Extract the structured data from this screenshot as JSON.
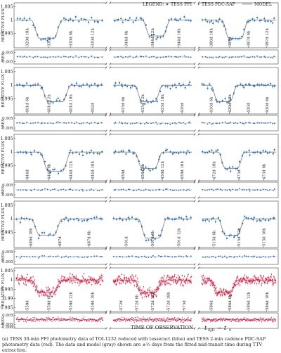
{
  "legend": {
    "title": "LEGEND:",
    "items": [
      {
        "label": "TESS FFI",
        "color": "#2b6cb0",
        "marker": "point"
      },
      {
        "label": "TESS PDC-SAP",
        "color": "#d0143a",
        "marker": "point"
      },
      {
        "label": "MODEL",
        "color": "#888888",
        "marker": "line"
      }
    ]
  },
  "axis_labels": {
    "flux": "RELATIVE FLUX",
    "residual": "RES",
    "x": "TIME OF OBSERVATION",
    "x_math": "t",
    "x_math_sub": "BJD",
    "x_math_rest": " − t",
    "x_math_sub2": "0"
  },
  "caption": {
    "text": "(a) TESS 30-min FFI photometry data of TOI-1232 reduced with tesseract (blue) and TESS 2-min cadence PDC-SAP photometry data (red). The data and model (gray) shown are ±½ days from the fitted mid-transit time during TTV extraction."
  },
  "colors": {
    "ffi": "#2b6cb0",
    "pdc": "#d0143a",
    "model": "#8a8a8a",
    "frame": "#444444"
  },
  "chart_data": [
    {
      "type": "scatter",
      "panel": 1,
      "source": "TESS FFI",
      "flux_ticks": [
        1.005,
        1,
        0.995
      ],
      "res_ticks": [
        0.005,
        -0.005
      ],
      "segments": [
        {
          "transit_depth": 0.007,
          "ticks": [
            "329d 18h",
            "330d",
            "330d 6h",
            "330d 12h"
          ]
        },
        {
          "transit_depth": 0.006,
          "ticks": [
            "344d 6h",
            "344d 12h",
            "344d 18h"
          ]
        },
        {
          "transit_depth": 0.007,
          "ticks": [
            "386d 18h",
            "387d",
            "387d 6h",
            "387d 12h"
          ]
        }
      ]
    },
    {
      "type": "scatter",
      "panel": 2,
      "source": "TESS FFI",
      "flux_ticks": [
        1.005,
        1,
        0.995
      ],
      "res_ticks": [
        0.005,
        -0.005
      ],
      "segments": [
        {
          "transit_depth": 0.006,
          "ticks": [
            "401d 6h",
            "401d 12h",
            "401d 18h",
            "402d"
          ]
        },
        {
          "transit_depth": 0.006,
          "ticks": [
            "415d 6h",
            "415d 12h",
            "415d 18h",
            "416d"
          ]
        },
        {
          "transit_depth": 0.006,
          "ticks": [
            "416d 6h",
            "429d 18h",
            "430d",
            "430d 6h"
          ]
        }
      ]
    },
    {
      "type": "scatter",
      "panel": 3,
      "source": "TESS FFI",
      "flux_ticks": [
        1.005,
        1,
        0.995
      ],
      "res_ticks": [
        0.005,
        -0.005
      ],
      "segments": [
        {
          "transit_depth": 0.007,
          "ticks": [
            "444d",
            "444d 6h",
            "444d 12h",
            "444d 18h"
          ]
        },
        {
          "transit_depth": 0.006,
          "ticks": [
            "458d",
            "458d 6h",
            "458d 12h",
            "458d 18h"
          ]
        },
        {
          "transit_depth": 0.006,
          "ticks": [
            "472d 18h",
            "473d",
            "473d 6h"
          ]
        }
      ]
    },
    {
      "type": "scatter",
      "panel": 4,
      "source": "TESS FFI",
      "flux_ticks": [
        1.005,
        1,
        0.995
      ],
      "res_ticks": [
        0.005,
        -0.005
      ],
      "segments": [
        {
          "transit_depth": 0.006,
          "ticks": [
            "486d 18h",
            "487d",
            "487d 6h"
          ]
        },
        {
          "transit_depth": 0.007,
          "ticks": [
            "501d",
            "501d 6h",
            "501d 12h"
          ]
        },
        {
          "transit_depth": 0.006,
          "ticks": [
            "515d 6h",
            "515d 12h",
            "515d 18h"
          ]
        }
      ]
    },
    {
      "type": "scatter",
      "panel": 5,
      "source": "TESS PDC-SAP",
      "flux_ticks": [
        1.005,
        1,
        0.995,
        0.99,
        0.985
      ],
      "res_ticks": [
        0.005,
        -0.005,
        -0.008
      ],
      "segments": [
        {
          "transit_depth": 0.007,
          "ticks": [
            "558d",
            "558d 6h",
            "558d 12h",
            "558d 18h"
          ]
        },
        {
          "transit_depth": 0.007,
          "ticks": [
            "572d",
            "572d 6h",
            "572d 12h",
            "572d 18h",
            "573d"
          ]
        },
        {
          "transit_depth": 0.007,
          "ticks": [
            "586d",
            "586d 6h",
            "586d 12h",
            "586d 18h"
          ]
        }
      ]
    }
  ]
}
